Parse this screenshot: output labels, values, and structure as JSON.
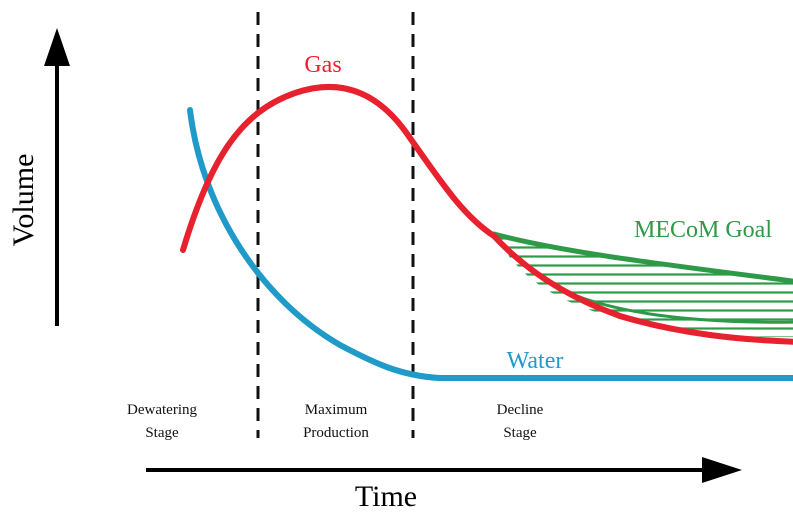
{
  "axes": {
    "y_label": "Volume",
    "x_label": "Time"
  },
  "curves": {
    "gas": {
      "label": "Gas",
      "color": "#e8212e"
    },
    "water": {
      "label": "Water",
      "color": "#1f9ac9"
    },
    "goal": {
      "label": "MECoM Goal",
      "color": "#2e9a48"
    }
  },
  "stages": [
    {
      "line1": "Dewatering",
      "line2": "Stage"
    },
    {
      "line1": "Maximum",
      "line2": "Production"
    },
    {
      "line1": "Decline",
      "line2": "Stage"
    }
  ],
  "colors": {
    "axis": "#000000",
    "divider": "#111111"
  }
}
